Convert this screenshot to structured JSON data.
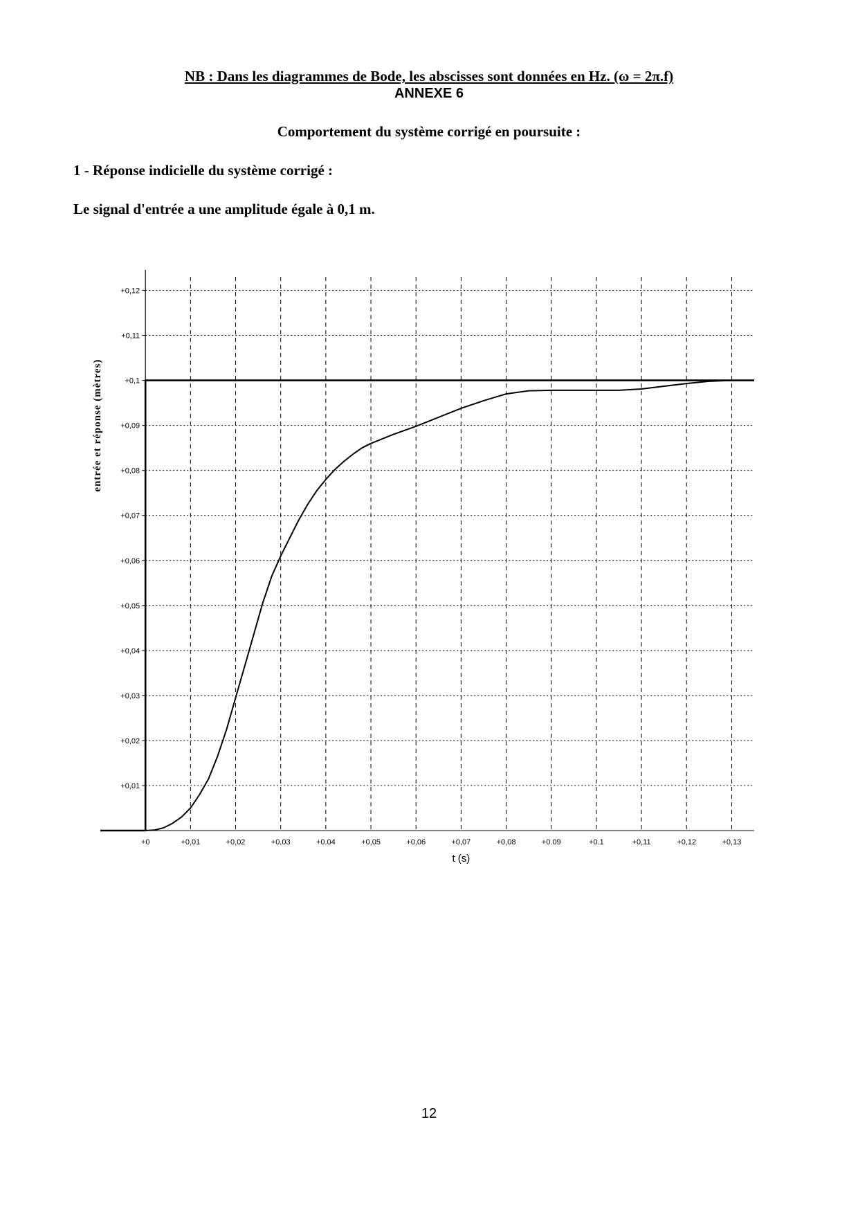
{
  "header": {
    "nb_note": "NB : Dans les diagrammes de Bode, les abscisses sont données en Hz. (ω = 2π.f)",
    "annexe": "ANNEXE 6",
    "section_title": "Comportement du système corrigé en poursuite :",
    "subsection": "1 - Réponse indicielle du système corrigé :",
    "signal_note": "Le signal d'entrée a une amplitude égale à 0,1 m."
  },
  "chart_data": {
    "type": "line",
    "xlabel": "t (s)",
    "ylabel": "entrée et réponse (mètres)",
    "xlim": [
      -0.01,
      0.135
    ],
    "ylim": [
      0,
      0.123
    ],
    "grid": true,
    "x_tick_labels": [
      "+0",
      "+0,01",
      "+0,02",
      "+0,03",
      "+0.04",
      "+0,05",
      "+0,06",
      "+0,07",
      "+0,08",
      "+0.09",
      "+0.1",
      "+0,11",
      "+0,12",
      "+0,13"
    ],
    "x_ticks": [
      0,
      0.01,
      0.02,
      0.03,
      0.04,
      0.05,
      0.06,
      0.07,
      0.08,
      0.09,
      0.1,
      0.11,
      0.12,
      0.13
    ],
    "y_tick_labels": [
      "+0,01",
      "+0,02",
      "+0,03",
      "+0,04",
      "+0,05",
      "+0,06",
      "+0,07",
      "+0,08",
      "+0,09",
      "+0,1",
      "+0,11",
      "+0,12"
    ],
    "y_ticks": [
      0.01,
      0.02,
      0.03,
      0.04,
      0.05,
      0.06,
      0.07,
      0.08,
      0.09,
      0.1,
      0.11,
      0.12
    ],
    "series": [
      {
        "role": "input",
        "x": [
          -0.01,
          0.0,
          0.0,
          0.135
        ],
        "y": [
          0,
          0,
          0.1,
          0.1
        ]
      },
      {
        "role": "response",
        "x": [
          -0.01,
          0.0,
          0.002,
          0.004,
          0.006,
          0.008,
          0.01,
          0.012,
          0.014,
          0.016,
          0.018,
          0.02,
          0.022,
          0.024,
          0.026,
          0.028,
          0.03,
          0.032,
          0.034,
          0.036,
          0.038,
          0.04,
          0.042,
          0.044,
          0.046,
          0.048,
          0.05,
          0.055,
          0.06,
          0.065,
          0.07,
          0.075,
          0.08,
          0.085,
          0.09,
          0.095,
          0.1,
          0.105,
          0.11,
          0.115,
          0.12,
          0.125,
          0.13,
          0.135
        ],
        "y": [
          0,
          0,
          0.0001,
          0.0006,
          0.0016,
          0.003,
          0.005,
          0.008,
          0.0115,
          0.0165,
          0.0225,
          0.0295,
          0.0365,
          0.0435,
          0.0505,
          0.0565,
          0.061,
          0.065,
          0.069,
          0.0725,
          0.0755,
          0.078,
          0.0802,
          0.082,
          0.0836,
          0.085,
          0.086,
          0.088,
          0.0898,
          0.0918,
          0.0938,
          0.0955,
          0.097,
          0.0977,
          0.0978,
          0.0978,
          0.0978,
          0.0978,
          0.0981,
          0.0987,
          0.0993,
          0.0998,
          0.1,
          0.1
        ]
      }
    ]
  },
  "footer": {
    "page_number": "12"
  }
}
